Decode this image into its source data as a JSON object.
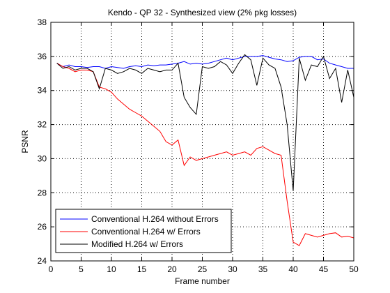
{
  "chart_data": {
    "type": "line",
    "title": "Kendo - QP 32 - Synthesized view (2% pkg losses)",
    "xlabel": "Frame number",
    "ylabel": "PSNR",
    "xlim": [
      0,
      50
    ],
    "ylim": [
      24,
      38
    ],
    "xticks": [
      0,
      5,
      10,
      15,
      20,
      25,
      30,
      35,
      40,
      45,
      50
    ],
    "yticks": [
      24,
      26,
      28,
      30,
      32,
      34,
      36,
      38
    ],
    "grid": true,
    "legend_position": "bottom-left",
    "x": [
      1,
      2,
      3,
      4,
      5,
      6,
      7,
      8,
      9,
      10,
      11,
      12,
      13,
      14,
      15,
      16,
      17,
      18,
      19,
      20,
      21,
      22,
      23,
      24,
      25,
      26,
      27,
      28,
      29,
      30,
      31,
      32,
      33,
      34,
      35,
      36,
      37,
      38,
      39,
      40,
      41,
      42,
      43,
      44,
      45,
      46,
      47,
      48,
      49,
      50
    ],
    "series": [
      {
        "name": "Conventional H.264 without Errors",
        "color": "#0000ff",
        "values": [
          35.6,
          35.4,
          35.5,
          35.4,
          35.4,
          35.35,
          35.4,
          35.4,
          35.3,
          35.4,
          35.35,
          35.3,
          35.4,
          35.45,
          35.4,
          35.5,
          35.45,
          35.5,
          35.5,
          35.55,
          35.6,
          35.7,
          35.55,
          35.6,
          35.55,
          35.6,
          35.7,
          35.8,
          35.9,
          35.8,
          35.9,
          36.0,
          36.0,
          36.0,
          36.05,
          35.95,
          35.85,
          35.8,
          35.7,
          35.75,
          35.95,
          36.0,
          36.0,
          35.8,
          35.85,
          35.6,
          35.5,
          35.4,
          35.3,
          35.3
        ]
      },
      {
        "name": "Conventional H.264 w/ Errors",
        "color": "#ff0000",
        "values": [
          35.6,
          35.4,
          35.3,
          35.1,
          35.2,
          35.2,
          35.1,
          34.2,
          34.1,
          33.9,
          33.5,
          33.2,
          32.9,
          32.7,
          32.5,
          32.2,
          31.9,
          31.6,
          31.0,
          30.8,
          31.1,
          29.6,
          30.1,
          29.9,
          30.0,
          30.1,
          30.2,
          30.3,
          30.4,
          30.2,
          30.3,
          30.4,
          30.2,
          30.6,
          30.7,
          30.5,
          30.3,
          30.2,
          27.5,
          25.1,
          24.9,
          25.6,
          25.5,
          25.4,
          25.5,
          25.6,
          25.65,
          25.4,
          25.45,
          25.35
        ]
      },
      {
        "name": "Modified H.264 w/ Errors",
        "color": "#000000",
        "values": [
          35.6,
          35.3,
          35.4,
          35.2,
          35.3,
          35.3,
          35.1,
          34.1,
          35.3,
          35.2,
          35.0,
          35.1,
          35.3,
          35.2,
          35.0,
          35.3,
          35.2,
          35.1,
          35.2,
          35.2,
          35.6,
          33.6,
          33.0,
          32.6,
          35.4,
          35.3,
          35.4,
          35.7,
          35.5,
          35.0,
          35.6,
          36.1,
          35.8,
          34.3,
          35.9,
          35.5,
          35.3,
          34.2,
          32.0,
          28.1,
          35.9,
          34.6,
          35.5,
          35.4,
          36.0,
          34.7,
          35.3,
          33.3,
          35.2,
          33.6
        ]
      }
    ]
  }
}
